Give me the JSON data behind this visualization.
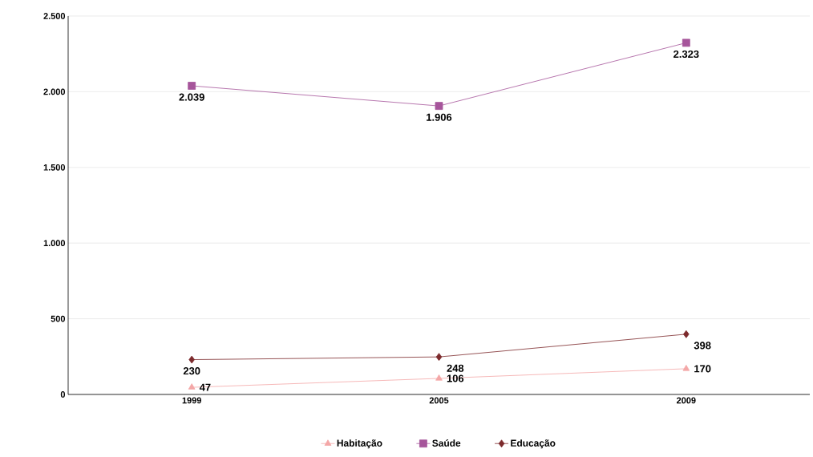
{
  "chart_data": {
    "type": "line",
    "categories": [
      "1999",
      "2005",
      "2009"
    ],
    "series": [
      {
        "name": "Habitação",
        "color": "#f4a7a7",
        "marker": "triangle",
        "values": [
          47,
          106,
          170
        ],
        "value_labels": [
          "47",
          "106",
          "170"
        ]
      },
      {
        "name": "Saúde",
        "color": "#a6559b",
        "marker": "square",
        "values": [
          2039,
          1906,
          2323
        ],
        "value_labels": [
          "2.039",
          "1.906",
          "2.323"
        ]
      },
      {
        "name": "Educação",
        "color": "#7c2a2c",
        "marker": "diamond",
        "values": [
          230,
          248,
          398
        ],
        "value_labels": [
          "230",
          "248",
          "398"
        ]
      }
    ],
    "ylim": [
      0,
      2500
    ],
    "yticks": [
      0,
      500,
      {
        "value": 1000,
        "label": "1.000"
      },
      {
        "value": 1500,
        "label": "1.500"
      },
      {
        "value": 2000,
        "label": "2.000"
      },
      {
        "value": 2500,
        "label": "2.500"
      }
    ],
    "grid": "y",
    "legend": "bottom",
    "line_style": "solid"
  }
}
